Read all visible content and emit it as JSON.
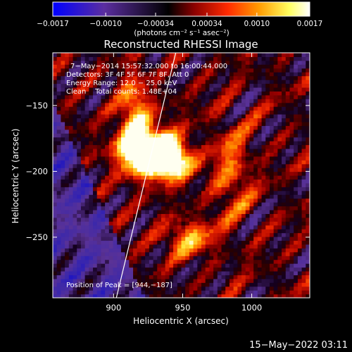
{
  "colorbar": {
    "tick_labels": [
      "−0.0017",
      "−0.0010",
      "−0.00034",
      "0.00034",
      "0.0010",
      "0.0017"
    ],
    "tick_values": [
      -0.0017,
      -0.001,
      -0.00034,
      0.00034,
      0.001,
      0.0017
    ],
    "unit_label": "(photons cm⁻² s⁻¹ asec⁻²)",
    "range": [
      -0.0017,
      0.0017
    ],
    "stops": [
      "#0000ff",
      "#5b2ea0",
      "#000000",
      "#8b0000",
      "#ff2a00",
      "#ff9a00",
      "#ffff60",
      "#ffffff"
    ]
  },
  "annotations": {
    "time_range": "7−May−2014 15:57:32.000 to 16:00:44.000",
    "detectors": "Detectors: 3F 4F 5F 6F 7F 8F, Att 0",
    "energy": "Energy Range: 12.0 − 25.0 keV",
    "clean": "Clean    Total counts: 1.48E+04",
    "peak": "Position of Peak = [944,−187]"
  },
  "footer": {
    "timestamp": "15−May−2022 03:11"
  },
  "chart_data": {
    "type": "heatmap",
    "title": "Reconstructed RHESSI Image",
    "xlabel": "Heliocentric X (arcsec)",
    "ylabel": "Heliocentric Y (arcsec)",
    "xlim": [
      856,
      1042
    ],
    "ylim": [
      -296,
      -110
    ],
    "x_ticks": [
      900,
      950,
      1000
    ],
    "y_ticks": [
      -150,
      -200,
      -250
    ],
    "x_tick_labels": [
      "900",
      "950",
      "1000"
    ],
    "y_tick_labels": [
      "−150",
      "−200",
      "−250"
    ],
    "peak": {
      "x": 944,
      "y": -187
    },
    "limb_line": [
      [
        902,
        -296
      ],
      [
        945,
        -110
      ]
    ],
    "hot_spots": [
      {
        "x": 925,
        "y": -185,
        "amp": 1.6,
        "sx": 14,
        "sy": 12
      },
      {
        "x": 940,
        "y": -190,
        "amp": 1.4,
        "sx": 10,
        "sy": 9
      },
      {
        "x": 915,
        "y": -155,
        "amp": 0.7,
        "sx": 8,
        "sy": 20
      },
      {
        "x": 955,
        "y": -250,
        "amp": 0.6,
        "sx": 12,
        "sy": 10
      },
      {
        "x": 985,
        "y": -200,
        "amp": 0.5,
        "sx": 10,
        "sy": 25
      }
    ],
    "colormap": "blue-purple-black-red-yellow-white"
  }
}
